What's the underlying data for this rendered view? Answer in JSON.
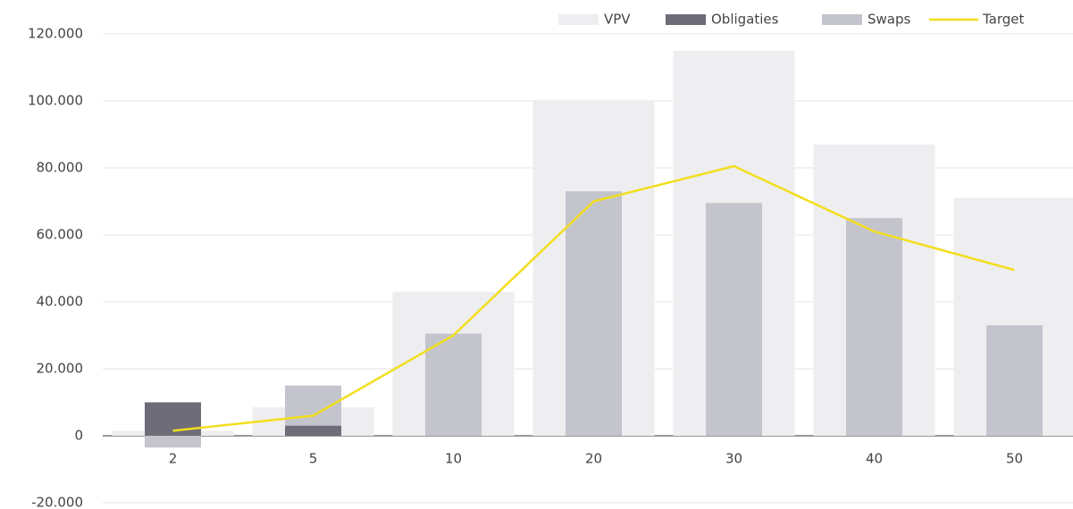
{
  "chart_data": {
    "type": "bar",
    "categories": [
      "2",
      "5",
      "10",
      "20",
      "30",
      "40",
      "50"
    ],
    "series": [
      {
        "name": "VPV",
        "type": "bar",
        "color": "#eeeef1",
        "values": [
          1500,
          8500,
          43000,
          100000,
          115000,
          87000,
          71000
        ]
      },
      {
        "name": "Obligaties",
        "type": "bar",
        "color": "#6e6c78",
        "values": [
          10000,
          3000,
          0,
          0,
          0,
          0,
          0
        ]
      },
      {
        "name": "Swaps",
        "type": "bar",
        "color": "#c4c4cc",
        "values": [
          -3500,
          15000,
          30500,
          73000,
          69500,
          65000,
          33000
        ]
      },
      {
        "name": "Target",
        "type": "line",
        "color": "#f2de1e",
        "values": [
          1500,
          6000,
          30000,
          70000,
          80500,
          61000,
          49500
        ]
      }
    ],
    "ylim": [
      -20000,
      120000
    ],
    "yticks": [
      {
        "value": -20000,
        "label": "-20.000"
      },
      0,
      {
        "value": 20000,
        "label": "20.000"
      },
      {
        "value": 40000,
        "label": "40.000"
      },
      {
        "value": 60000,
        "label": "60.000"
      },
      {
        "value": 80000,
        "label": "80.000"
      },
      {
        "value": 100000,
        "label": "100.000"
      },
      {
        "value": 120000,
        "label": "120.000"
      }
    ],
    "grid": true,
    "legend": "top-right"
  }
}
